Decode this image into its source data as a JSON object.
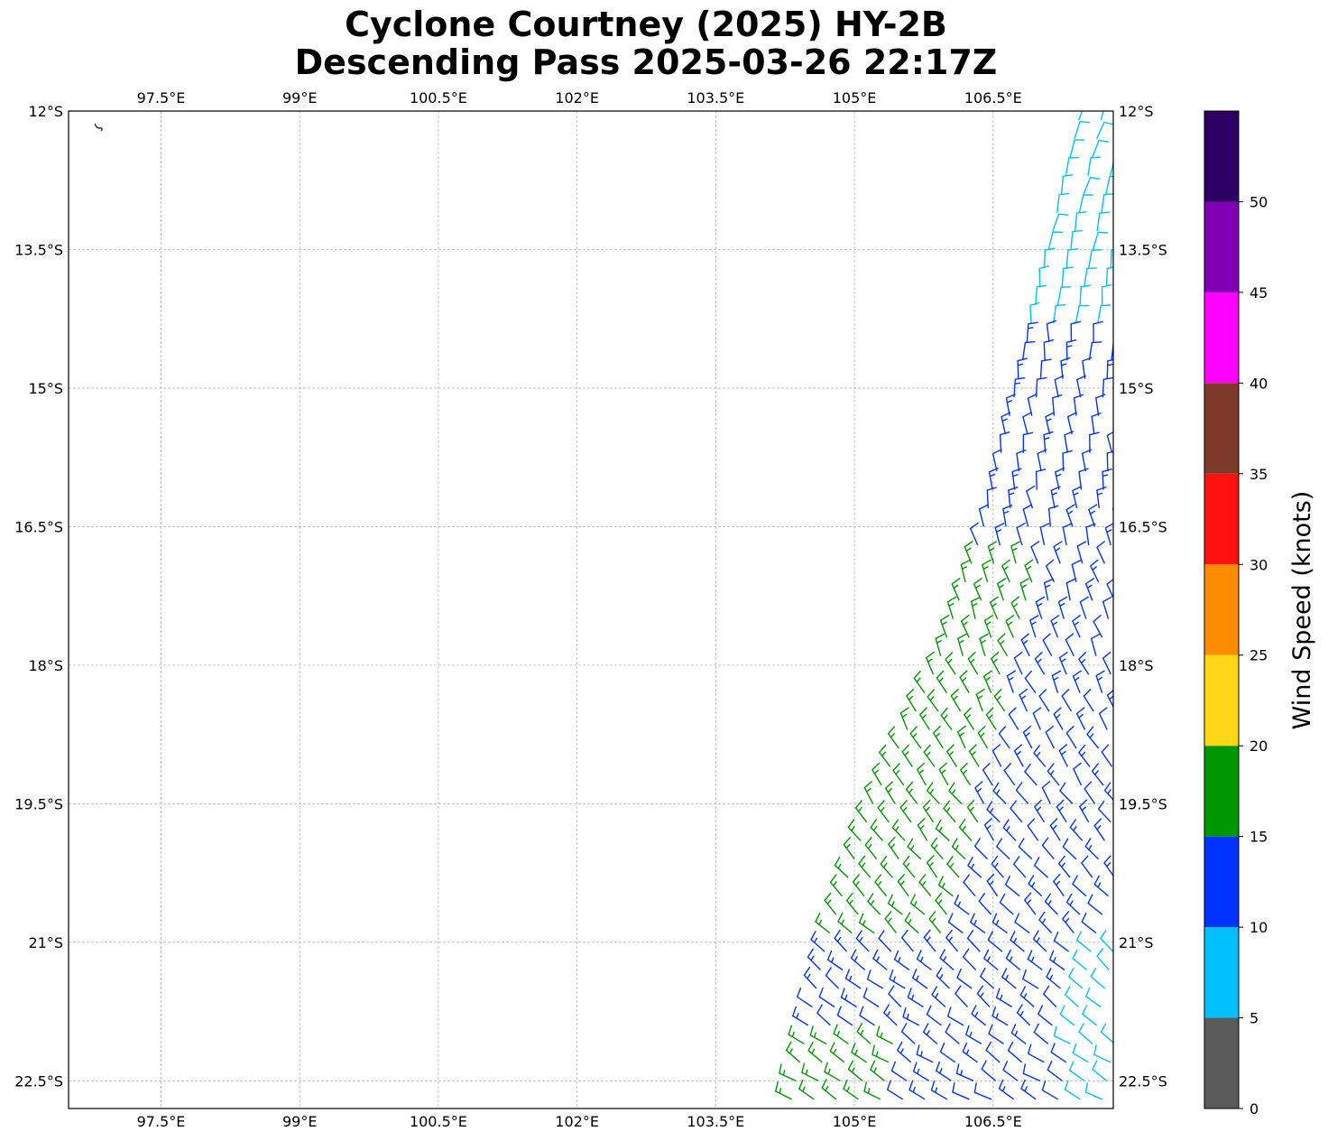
{
  "title_line1": "Cyclone Courtney (2025) HY-2B",
  "title_line2": "Descending Pass 2025-03-26 22:17Z",
  "map": {
    "lon_range": [
      96.5,
      107.8
    ],
    "lat_range": [
      -22.8,
      -12.0
    ],
    "lon_ticks": [
      97.5,
      99,
      100.5,
      102,
      103.5,
      105,
      106.5
    ],
    "lon_tick_labels": [
      "97.5°E",
      "99°E",
      "100.5°E",
      "102°E",
      "103.5°E",
      "105°E",
      "106.5°E"
    ],
    "lat_ticks": [
      -12,
      -13.5,
      -15,
      -16.5,
      -18,
      -19.5,
      -21,
      -22.5
    ],
    "lat_tick_labels": [
      "12°S",
      "13.5°S",
      "15°S",
      "16.5°S",
      "18°S",
      "19.5°S",
      "21°S",
      "22.5°S"
    ],
    "gridlines": true,
    "gridline_color": "#b4b4b4"
  },
  "swath": {
    "description_color_by": "wind speed (knots)",
    "west_edge": [
      [
        107.45,
        -12.0
      ],
      [
        106.4,
        -16.5
      ],
      [
        105.9,
        -18.0
      ],
      [
        105.2,
        -19.5
      ],
      [
        104.7,
        -21.0
      ],
      [
        104.3,
        -22.8
      ]
    ],
    "east_edge": [
      [
        107.8,
        -12.0
      ],
      [
        107.8,
        -22.8
      ]
    ]
  },
  "colorbar": {
    "label": "Wind Speed (knots)",
    "tick_labels": [
      "0",
      "5",
      "10",
      "15",
      "20",
      "25",
      "30",
      "35",
      "40",
      "45",
      "50"
    ],
    "bands": [
      {
        "from": 0,
        "to": 5,
        "color": "#5a5a5a"
      },
      {
        "from": 5,
        "to": 10,
        "color": "#00bfff"
      },
      {
        "from": 10,
        "to": 15,
        "color": "#0033ff"
      },
      {
        "from": 15,
        "to": 20,
        "color": "#009600"
      },
      {
        "from": 20,
        "to": 25,
        "color": "#ffd514"
      },
      {
        "from": 25,
        "to": 30,
        "color": "#ff8c00"
      },
      {
        "from": 30,
        "to": 35,
        "color": "#ff1010"
      },
      {
        "from": 35,
        "to": 40,
        "color": "#7e3a28"
      },
      {
        "from": 40,
        "to": 45,
        "color": "#ff00ff"
      },
      {
        "from": 45,
        "to": 50,
        "color": "#8000b3"
      },
      {
        "from": 50,
        "to": 55,
        "color": "#2c0063"
      }
    ]
  }
}
